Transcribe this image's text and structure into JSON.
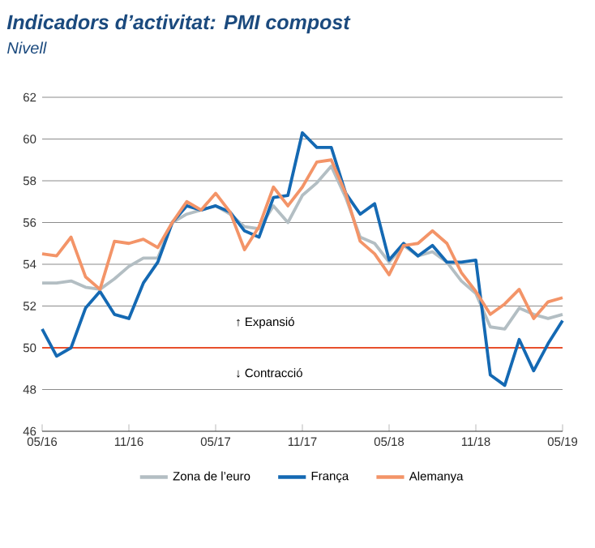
{
  "chart_data": {
    "type": "line",
    "title": "Indicadors d’activitat: PMI compost",
    "subtitle": "Nivell",
    "x": [
      "2016-05",
      "2016-06",
      "2016-07",
      "2016-08",
      "2016-09",
      "2016-10",
      "2016-11",
      "2016-12",
      "2017-01",
      "2017-02",
      "2017-03",
      "2017-04",
      "2017-05",
      "2017-06",
      "2017-07",
      "2017-08",
      "2017-09",
      "2017-10",
      "2017-11",
      "2017-12",
      "2018-01",
      "2018-02",
      "2018-03",
      "2018-04",
      "2018-05",
      "2018-06",
      "2018-07",
      "2018-08",
      "2018-09",
      "2018-10",
      "2018-11",
      "2018-12",
      "2019-01",
      "2019-02",
      "2019-03",
      "2019-04",
      "2019-05"
    ],
    "series": [
      {
        "name": "Zona de l’euro",
        "color": "#b3bec3",
        "values": [
          53.1,
          53.1,
          53.2,
          52.9,
          52.8,
          53.3,
          53.9,
          54.3,
          54.3,
          56.0,
          56.4,
          56.6,
          56.8,
          56.4,
          55.8,
          55.7,
          56.8,
          56.0,
          57.3,
          57.9,
          58.7,
          57.2,
          55.3,
          55.0,
          54.1,
          54.9,
          54.4,
          54.6,
          54.1,
          53.2,
          52.6,
          51.0,
          50.9,
          51.9,
          51.6,
          51.4,
          51.6
        ]
      },
      {
        "name": "França",
        "color": "#1469b3",
        "values": [
          50.9,
          49.6,
          50.0,
          51.9,
          52.7,
          51.6,
          51.4,
          53.1,
          54.1,
          56.0,
          56.8,
          56.6,
          56.8,
          56.5,
          55.6,
          55.3,
          57.2,
          57.3,
          60.3,
          59.6,
          59.6,
          57.4,
          56.4,
          56.9,
          54.2,
          55.0,
          54.4,
          54.9,
          54.1,
          54.1,
          54.2,
          48.7,
          48.2,
          50.4,
          48.9,
          50.2,
          51.3
        ]
      },
      {
        "name": "Alemanya",
        "color": "#f39468",
        "values": [
          54.5,
          54.4,
          55.3,
          53.4,
          52.8,
          55.1,
          55.0,
          55.2,
          54.8,
          56.0,
          57.0,
          56.6,
          57.4,
          56.5,
          54.7,
          55.8,
          57.7,
          56.8,
          57.7,
          58.9,
          59.0,
          57.4,
          55.1,
          54.5,
          53.5,
          54.9,
          55.0,
          55.6,
          55.0,
          53.6,
          52.7,
          51.6,
          52.1,
          52.8,
          51.4,
          52.2,
          52.4
        ]
      }
    ],
    "xlim": [
      "2016-05",
      "2019-05"
    ],
    "xticks": [
      {
        "value": "2016-05",
        "label": "05/16"
      },
      {
        "value": "2016-11",
        "label": "11/16"
      },
      {
        "value": "2017-05",
        "label": "05/17"
      },
      {
        "value": "2017-11",
        "label": "11/17"
      },
      {
        "value": "2018-05",
        "label": "05/18"
      },
      {
        "value": "2018-11",
        "label": "11/18"
      },
      {
        "value": "2019-05",
        "label": "05/19"
      }
    ],
    "ylim": [
      46,
      62
    ],
    "yticks": [
      46,
      48,
      50,
      52,
      54,
      56,
      58,
      60,
      62
    ],
    "grid": "y",
    "legend": "bottom",
    "ref_lines": [
      {
        "axis": "y",
        "value": 50,
        "color": "#e8502c"
      }
    ],
    "annotations": [
      "↑ Expansió",
      "↓ Contracció"
    ]
  }
}
